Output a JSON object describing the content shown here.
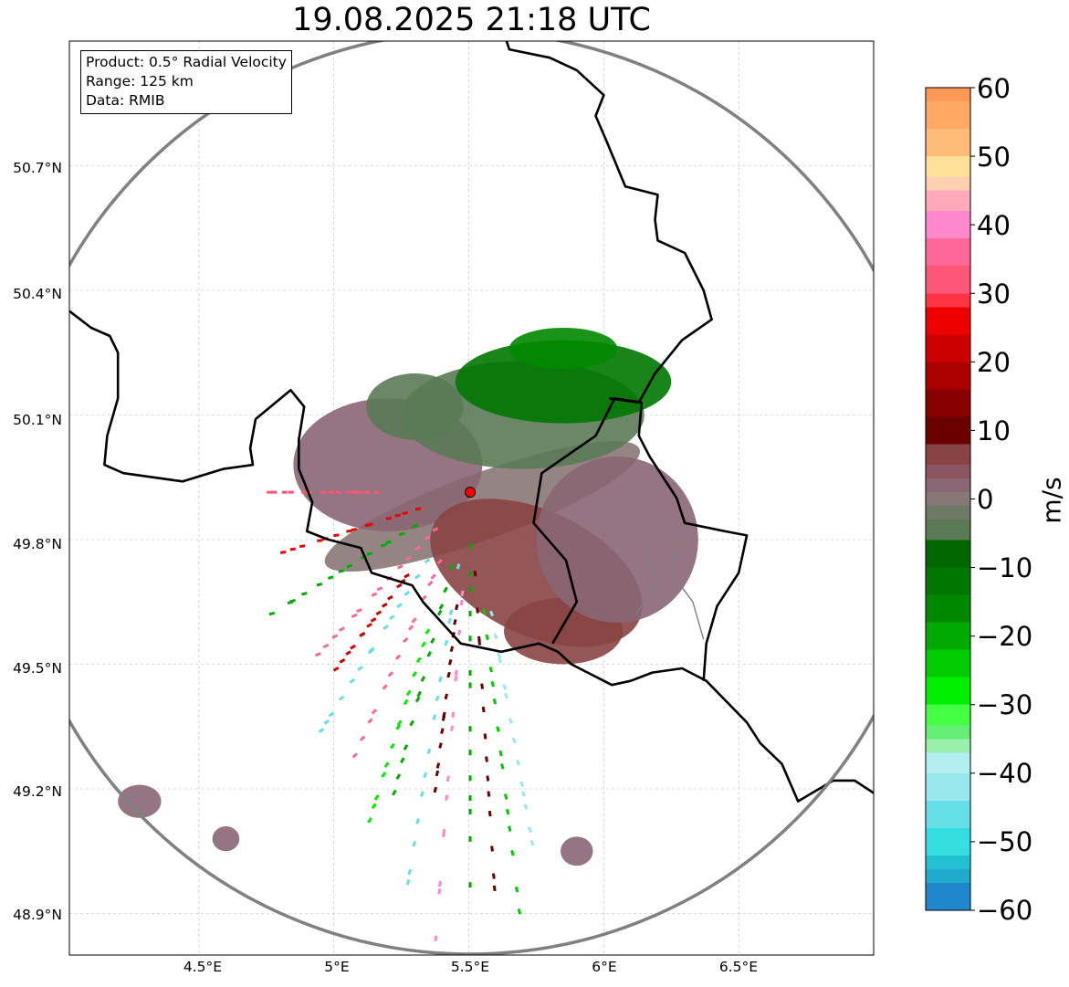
{
  "title": "19.08.2025 21:18 UTC",
  "info_box": {
    "product": "Product: 0.5° Radial Velocity",
    "range": "Range: 125 km",
    "data": "Data: RMIB"
  },
  "map_extent": {
    "lon": [
      4.02,
      7.0
    ],
    "lat": [
      48.8,
      51.0
    ]
  },
  "latitude_labels": [
    {
      "value": 50.7,
      "label": "50.7°N"
    },
    {
      "value": 50.4,
      "label": "50.4°N"
    },
    {
      "value": 50.1,
      "label": "50.1°N"
    },
    {
      "value": 49.8,
      "label": "49.8°N"
    },
    {
      "value": 49.5,
      "label": "49.5°N"
    },
    {
      "value": 49.2,
      "label": "49.2°N"
    },
    {
      "value": 48.9,
      "label": "48.9°N"
    }
  ],
  "longitude_labels": [
    {
      "value": 4.5,
      "label": "4.5°E"
    },
    {
      "value": 5.0,
      "label": "5°E"
    },
    {
      "value": 5.5,
      "label": "5.5°E"
    },
    {
      "value": 6.0,
      "label": "6°E"
    },
    {
      "value": 6.5,
      "label": "6.5°E"
    }
  ],
  "radar_site": {
    "lon": 5.505,
    "lat": 49.914,
    "color": "#ff0000"
  },
  "range_ring_color": "#808080",
  "colorbar": {
    "label": "m/s",
    "min": -60,
    "max": 60,
    "ticks": [
      {
        "value": 60,
        "label": "60"
      },
      {
        "value": 50,
        "label": "50"
      },
      {
        "value": 40,
        "label": "40"
      },
      {
        "value": 30,
        "label": "30"
      },
      {
        "value": 20,
        "label": "20"
      },
      {
        "value": 10,
        "label": "10"
      },
      {
        "value": 0,
        "label": "0"
      },
      {
        "value": -10,
        "label": "−10"
      },
      {
        "value": -20,
        "label": "−20"
      },
      {
        "value": -30,
        "label": "−30"
      },
      {
        "value": -40,
        "label": "−40"
      },
      {
        "value": -50,
        "label": "−50"
      },
      {
        "value": -60,
        "label": "−60"
      }
    ],
    "segments": [
      {
        "from": 58,
        "to": 60,
        "color": "#ff9955"
      },
      {
        "from": 54,
        "to": 58,
        "color": "#ffa866"
      },
      {
        "from": 50,
        "to": 54,
        "color": "#ffbb77"
      },
      {
        "from": 47,
        "to": 50,
        "color": "#ffe099"
      },
      {
        "from": 45,
        "to": 47,
        "color": "#ffd0b0"
      },
      {
        "from": 42,
        "to": 45,
        "color": "#ffaabb"
      },
      {
        "from": 38,
        "to": 42,
        "color": "#ff88cc"
      },
      {
        "from": 34,
        "to": 38,
        "color": "#ff6699"
      },
      {
        "from": 30,
        "to": 34,
        "color": "#ff5577"
      },
      {
        "from": 28,
        "to": 30,
        "color": "#ff3344"
      },
      {
        "from": 24,
        "to": 28,
        "color": "#ee0000"
      },
      {
        "from": 20,
        "to": 24,
        "color": "#cc0000"
      },
      {
        "from": 16,
        "to": 20,
        "color": "#aa0000"
      },
      {
        "from": 12,
        "to": 16,
        "color": "#880000"
      },
      {
        "from": 8,
        "to": 12,
        "color": "#6a0000"
      },
      {
        "from": 5,
        "to": 8,
        "color": "#884444"
      },
      {
        "from": 3,
        "to": 5,
        "color": "#8a5560"
      },
      {
        "from": 1,
        "to": 3,
        "color": "#886673"
      },
      {
        "from": -1,
        "to": 1,
        "color": "#887777"
      },
      {
        "from": -3,
        "to": -1,
        "color": "#6e7a66"
      },
      {
        "from": -6,
        "to": -3,
        "color": "#5a7a55"
      },
      {
        "from": -10,
        "to": -6,
        "color": "#006600"
      },
      {
        "from": -14,
        "to": -10,
        "color": "#007700"
      },
      {
        "from": -18,
        "to": -14,
        "color": "#008800"
      },
      {
        "from": -22,
        "to": -18,
        "color": "#00aa00"
      },
      {
        "from": -26,
        "to": -22,
        "color": "#00cc00"
      },
      {
        "from": -30,
        "to": -26,
        "color": "#00ee00"
      },
      {
        "from": -33,
        "to": -30,
        "color": "#44ff44"
      },
      {
        "from": -35,
        "to": -33,
        "color": "#66ee77"
      },
      {
        "from": -37,
        "to": -35,
        "color": "#99f0aa"
      },
      {
        "from": -40,
        "to": -37,
        "color": "#b3eef0"
      },
      {
        "from": -44,
        "to": -40,
        "color": "#99e8ee"
      },
      {
        "from": -48,
        "to": -44,
        "color": "#66e0e6"
      },
      {
        "from": -52,
        "to": -48,
        "color": "#33dde0"
      },
      {
        "from": -54,
        "to": -52,
        "color": "#22c0d0"
      },
      {
        "from": -56,
        "to": -54,
        "color": "#22aacc"
      },
      {
        "from": -60,
        "to": -56,
        "color": "#1f88cc"
      }
    ]
  },
  "velocity_areas": [
    {
      "lon": 5.55,
      "lat": 49.88,
      "rx_deg": 0.62,
      "ry_deg": 0.08,
      "rot": -20,
      "color": "#887777"
    },
    {
      "lon": 5.2,
      "lat": 49.98,
      "rx_deg": 0.35,
      "ry_deg": 0.16,
      "color": "#886673"
    },
    {
      "lon": 5.75,
      "lat": 49.72,
      "rx_deg": 0.42,
      "ry_deg": 0.15,
      "rot": 25,
      "color": "#884444"
    },
    {
      "lon": 5.85,
      "lat": 49.58,
      "rx_deg": 0.22,
      "ry_deg": 0.08,
      "color": "#884444"
    },
    {
      "lon": 6.05,
      "lat": 49.8,
      "rx_deg": 0.3,
      "ry_deg": 0.2,
      "color": "#886673"
    },
    {
      "lon": 5.7,
      "lat": 50.1,
      "rx_deg": 0.45,
      "ry_deg": 0.13,
      "color": "#5a7a55"
    },
    {
      "lon": 5.85,
      "lat": 50.18,
      "rx_deg": 0.4,
      "ry_deg": 0.1,
      "color": "#007700"
    },
    {
      "lon": 5.3,
      "lat": 50.12,
      "rx_deg": 0.18,
      "ry_deg": 0.08,
      "color": "#5a7a55"
    },
    {
      "lon": 5.85,
      "lat": 50.26,
      "rx_deg": 0.2,
      "ry_deg": 0.05,
      "color": "#008800"
    },
    {
      "lon": 4.28,
      "lat": 49.17,
      "rx_deg": 0.08,
      "ry_deg": 0.04,
      "color": "#886673"
    },
    {
      "lon": 4.6,
      "lat": 49.08,
      "rx_deg": 0.05,
      "ry_deg": 0.03,
      "color": "#886673"
    },
    {
      "lon": 5.9,
      "lat": 49.05,
      "rx_deg": 0.06,
      "ry_deg": 0.035,
      "color": "#886673"
    }
  ],
  "velocity_streaks": [
    {
      "az": 200,
      "r0": 0.2,
      "r1": 1.1,
      "color": "#66e0e6"
    },
    {
      "az": 210,
      "r0": 0.2,
      "r1": 0.9,
      "color": "#00aa00"
    },
    {
      "az": 225,
      "r0": 0.2,
      "r1": 0.95,
      "color": "#ff6699"
    },
    {
      "az": 235,
      "r0": 0.3,
      "r1": 1.1,
      "color": "#66e0e6"
    },
    {
      "az": 245,
      "r0": 0.2,
      "r1": 1.0,
      "color": "#ff6699"
    },
    {
      "az": 255,
      "r0": 0.3,
      "r1": 1.2,
      "color": "#00aa00"
    },
    {
      "az": 262,
      "r0": 0.3,
      "r1": 1.1,
      "color": "#ee0000"
    },
    {
      "az": 270,
      "r0": 0.5,
      "r1": 1.2,
      "color": "#ff5577"
    },
    {
      "az": 190,
      "r0": 0.2,
      "r1": 1.15,
      "color": "#ff88cc"
    },
    {
      "az": 180,
      "r0": 0.1,
      "r1": 1.0,
      "color": "#00aa00"
    },
    {
      "az": 172,
      "r0": 0.2,
      "r1": 1.05,
      "color": "#6a0000"
    },
    {
      "az": 165,
      "r0": 0.3,
      "r1": 1.1,
      "color": "#00cc00"
    },
    {
      "az": 158,
      "r0": 0.3,
      "r1": 1.0,
      "color": "#99e8ee"
    },
    {
      "az": 215,
      "r0": 0.4,
      "r1": 1.05,
      "color": "#00ee00"
    },
    {
      "az": 240,
      "r0": 0.4,
      "r1": 0.9,
      "color": "#cc0000"
    },
    {
      "az": 195,
      "r0": 0.3,
      "r1": 0.8,
      "color": "#6a0000"
    }
  ],
  "borders": {
    "country": [
      [
        [
          4.02,
          50.35
        ],
        [
          4.1,
          50.31
        ],
        [
          4.17,
          50.29
        ],
        [
          4.2,
          50.25
        ],
        [
          4.2,
          50.14
        ],
        [
          4.16,
          50.05
        ],
        [
          4.15,
          49.98
        ],
        [
          4.22,
          49.96
        ],
        [
          4.44,
          49.94
        ],
        [
          4.59,
          49.97
        ],
        [
          4.7,
          49.98
        ],
        [
          4.69,
          50.02
        ],
        [
          4.71,
          50.09
        ],
        [
          4.84,
          50.16
        ],
        [
          4.89,
          50.12
        ],
        [
          4.87,
          50.04
        ],
        [
          4.87,
          49.97
        ],
        [
          4.92,
          49.89
        ],
        [
          4.9,
          49.82
        ],
        [
          4.98,
          49.8
        ],
        [
          5.1,
          49.78
        ],
        [
          5.14,
          49.72
        ],
        [
          5.29,
          49.69
        ],
        [
          5.33,
          49.65
        ],
        [
          5.47,
          49.55
        ],
        [
          5.62,
          49.53
        ],
        [
          5.76,
          49.55
        ],
        [
          5.83,
          49.53
        ],
        [
          5.88,
          49.5
        ],
        [
          6.03,
          49.45
        ],
        [
          6.1,
          49.46
        ],
        [
          6.18,
          49.48
        ],
        [
          6.29,
          49.49
        ],
        [
          6.38,
          49.46
        ],
        [
          6.53,
          49.36
        ],
        [
          6.58,
          49.31
        ],
        [
          6.66,
          49.26
        ],
        [
          6.72,
          49.17
        ],
        [
          6.85,
          49.22
        ],
        [
          6.93,
          49.22
        ],
        [
          7.0,
          49.19
        ]
      ],
      [
        [
          5.81,
          49.55
        ],
        [
          5.9,
          49.65
        ],
        [
          5.86,
          49.75
        ],
        [
          5.74,
          49.84
        ],
        [
          5.77,
          49.96
        ],
        [
          5.97,
          50.05
        ],
        [
          6.04,
          50.14
        ],
        [
          6.14,
          50.13
        ],
        [
          6.13,
          50.05
        ],
        [
          6.17,
          50.0
        ],
        [
          6.27,
          49.9
        ],
        [
          6.3,
          49.84
        ],
        [
          6.45,
          49.82
        ],
        [
          6.53,
          49.81
        ],
        [
          6.5,
          49.72
        ],
        [
          6.42,
          49.64
        ],
        [
          6.38,
          49.55
        ],
        [
          6.37,
          49.46
        ]
      ],
      [
        [
          6.02,
          50.14
        ],
        [
          6.13,
          50.13
        ],
        [
          6.19,
          50.2
        ],
        [
          6.29,
          50.28
        ],
        [
          6.4,
          50.33
        ],
        [
          6.37,
          50.4
        ],
        [
          6.3,
          50.49
        ],
        [
          6.2,
          50.52
        ],
        [
          6.19,
          50.57
        ],
        [
          6.2,
          50.63
        ],
        [
          6.08,
          50.65
        ],
        [
          6.01,
          50.76
        ],
        [
          5.97,
          50.82
        ],
        [
          6.0,
          50.87
        ],
        [
          5.9,
          50.93
        ],
        [
          5.8,
          50.96
        ],
        [
          5.65,
          50.98
        ],
        [
          5.64,
          51.0
        ]
      ]
    ],
    "regional": [
      [
        [
          6.3,
          49.84
        ],
        [
          6.25,
          49.72
        ],
        [
          6.33,
          49.65
        ],
        [
          6.37,
          49.56
        ]
      ],
      [
        [
          6.15,
          49.8
        ],
        [
          6.2,
          49.7
        ],
        [
          6.12,
          49.62
        ]
      ]
    ]
  }
}
